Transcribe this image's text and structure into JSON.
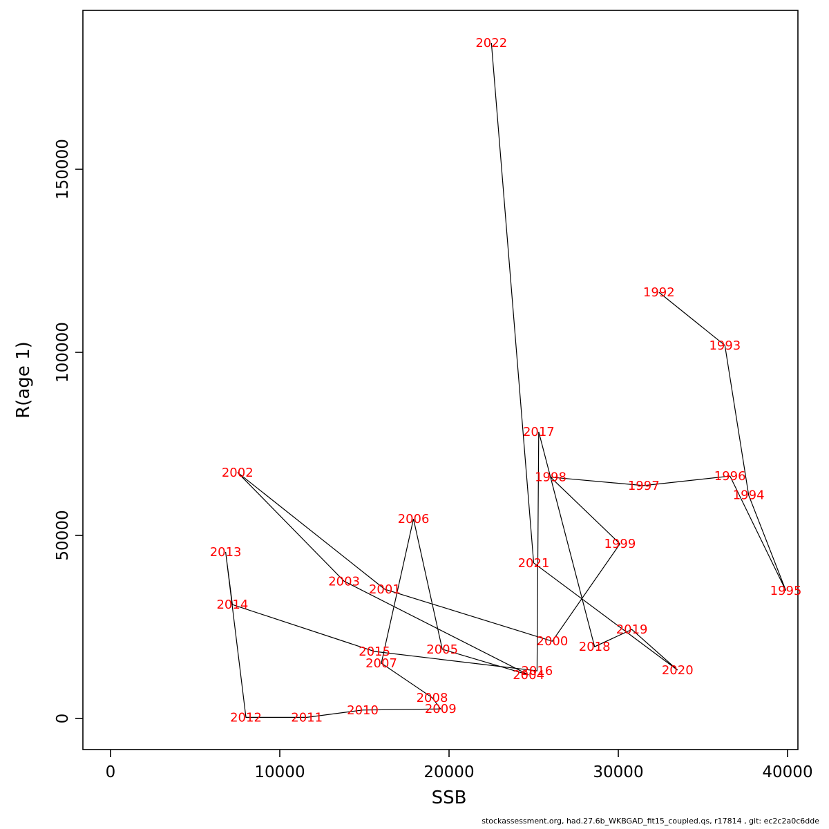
{
  "figure": {
    "xlabel": "SSB",
    "ylabel": "R(age 1)"
  },
  "footer": {
    "text": "stockassessment.org, had.27.6b_WKBGAD_fit15_coupled.qs, r17814 , git: ec2c2a0c6dde"
  },
  "chart_data": {
    "type": "scatter",
    "subtype": "labeled-connected-scatter",
    "title": "",
    "xlabel": "SSB",
    "ylabel": "R(age 1)",
    "xlim": [
      0,
      41500
    ],
    "ylim": [
      -4000,
      192000
    ],
    "x_ticks": [
      0,
      10000,
      20000,
      30000,
      40000
    ],
    "y_ticks": [
      0,
      50000,
      100000,
      150000
    ],
    "grid": false,
    "legend": "none",
    "label_color": "#ff0000",
    "line_color": "#000000",
    "points": [
      {
        "year": "1992",
        "ssb": 32400,
        "r": 116400
      },
      {
        "year": "1993",
        "ssb": 36300,
        "r": 101900
      },
      {
        "year": "1994",
        "ssb": 37700,
        "r": 61000
      },
      {
        "year": "1995",
        "ssb": 39900,
        "r": 34900
      },
      {
        "year": "1996",
        "ssb": 36600,
        "r": 66200
      },
      {
        "year": "1997",
        "ssb": 31500,
        "r": 63600
      },
      {
        "year": "1998",
        "ssb": 26000,
        "r": 65900
      },
      {
        "year": "1999",
        "ssb": 30100,
        "r": 47700
      },
      {
        "year": "2000",
        "ssb": 26100,
        "r": 21100
      },
      {
        "year": "2001",
        "ssb": 16200,
        "r": 35300
      },
      {
        "year": "2002",
        "ssb": 7500,
        "r": 67200
      },
      {
        "year": "2003",
        "ssb": 13800,
        "r": 37500
      },
      {
        "year": "2004",
        "ssb": 24700,
        "r": 11900
      },
      {
        "year": "2005",
        "ssb": 19600,
        "r": 18900
      },
      {
        "year": "2006",
        "ssb": 17900,
        "r": 54500
      },
      {
        "year": "2007",
        "ssb": 16000,
        "r": 15100
      },
      {
        "year": "2008",
        "ssb": 19000,
        "r": 5700
      },
      {
        "year": "2009",
        "ssb": 19500,
        "r": 2600
      },
      {
        "year": "2010",
        "ssb": 14900,
        "r": 2300
      },
      {
        "year": "2011",
        "ssb": 11600,
        "r": 300
      },
      {
        "year": "2012",
        "ssb": 8000,
        "r": 300
      },
      {
        "year": "2013",
        "ssb": 6800,
        "r": 45500
      },
      {
        "year": "2014",
        "ssb": 7200,
        "r": 31100
      },
      {
        "year": "2015",
        "ssb": 15600,
        "r": 18300
      },
      {
        "year": "2016",
        "ssb": 25200,
        "r": 13000
      },
      {
        "year": "2017",
        "ssb": 25300,
        "r": 78300
      },
      {
        "year": "2018",
        "ssb": 28600,
        "r": 19600
      },
      {
        "year": "2019",
        "ssb": 30800,
        "r": 24300
      },
      {
        "year": "2020",
        "ssb": 33500,
        "r": 13200
      },
      {
        "year": "2021",
        "ssb": 25000,
        "r": 42500
      },
      {
        "year": "2022",
        "ssb": 22500,
        "r": 184500
      }
    ]
  }
}
